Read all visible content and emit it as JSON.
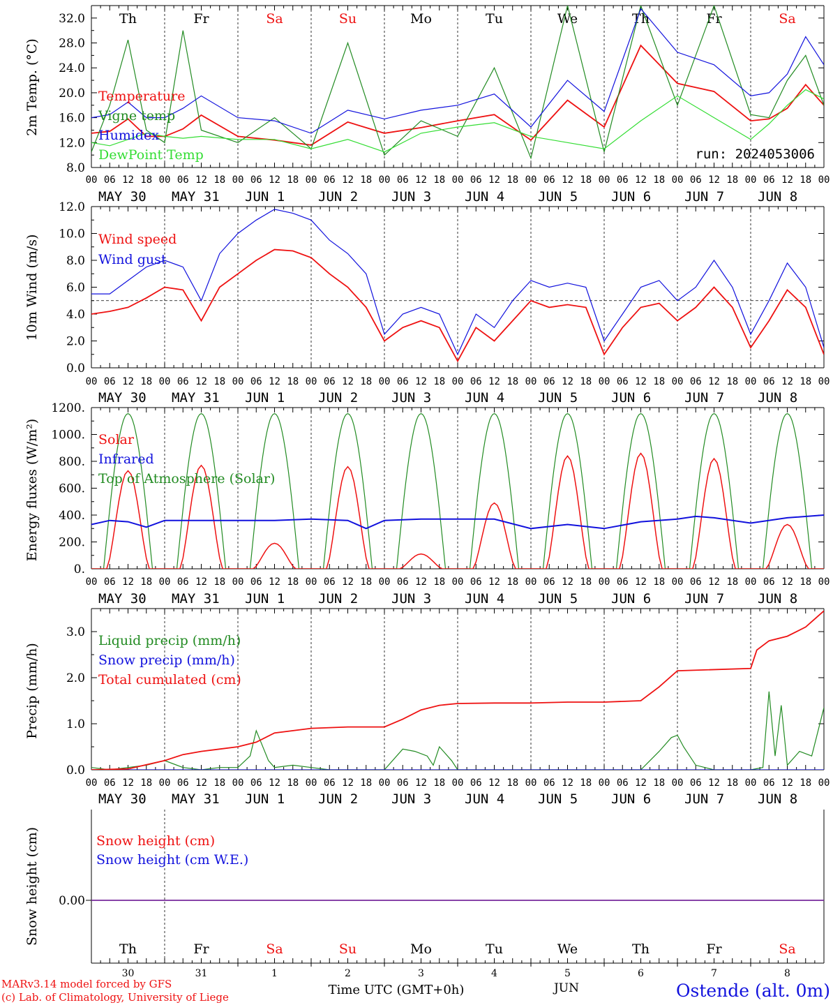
{
  "footer": {
    "model": "MARv3.14 model forced by GFS",
    "lab": "(c) Lab. of Climatology, University of Liege",
    "xlabel": "Time UTC (GMT+0h)",
    "month": "JUN",
    "station": "Ostende (alt. 0m)"
  },
  "colors": {
    "red": "#ee1111",
    "green": "#228b22",
    "blue": "#1111dd",
    "lightgreen": "#33dd33",
    "purple": "#7a2ea0",
    "black": "#000000"
  },
  "days": {
    "weekday": [
      "Th",
      "Fr",
      "Sa",
      "Su",
      "Mo",
      "Tu",
      "We",
      "Th",
      "Fr",
      "Sa"
    ],
    "weekend": [
      false,
      false,
      true,
      true,
      false,
      false,
      false,
      false,
      false,
      true
    ],
    "date_labels": [
      "MAY 30",
      "MAY 31",
      "JUN  1",
      "JUN  2",
      "JUN  3",
      "JUN  4",
      "JUN  5",
      "JUN  6",
      "JUN  7",
      "JUN  8"
    ],
    "day_numbers": [
      "30",
      "31",
      "1",
      "2",
      "3",
      "4",
      "5",
      "6",
      "7",
      "8"
    ],
    "hour_ticks": [
      "00",
      "06",
      "12",
      "18"
    ],
    "final_hour": "00"
  },
  "chart_data": [
    {
      "type": "line",
      "ylabel": "2m Temp. (°C)",
      "ylim": [
        8,
        34
      ],
      "yticks": [
        "8.0",
        "12.0",
        "16.0",
        "20.0",
        "24.0",
        "28.0",
        "32.0"
      ],
      "annotation": "run: 2024053006",
      "x_unit": "hours since May 30 00 UTC",
      "series": [
        {
          "name": "Temperature",
          "color": "red",
          "x": [
            0,
            6,
            12,
            18,
            24,
            30,
            36,
            48,
            60,
            72,
            84,
            96,
            108,
            120,
            132,
            144,
            156,
            168,
            180,
            192,
            204,
            216,
            222,
            228,
            234,
            240
          ],
          "y": [
            13.5,
            13.8,
            15.8,
            13.0,
            13.0,
            14.2,
            16.4,
            13.0,
            12.4,
            11.6,
            15.3,
            13.5,
            14.4,
            15.5,
            16.5,
            12.4,
            18.8,
            14.5,
            27.6,
            21.5,
            20.2,
            15.5,
            15.8,
            17.5,
            21.3,
            18.0
          ]
        },
        {
          "name": "Vigne temp",
          "color": "green",
          "x": [
            0,
            6,
            12,
            18,
            24,
            30,
            36,
            48,
            60,
            72,
            84,
            96,
            108,
            120,
            132,
            144,
            156,
            168,
            180,
            192,
            204,
            216,
            222,
            228,
            234,
            240
          ],
          "y": [
            10.5,
            18.0,
            28.5,
            14.0,
            12.0,
            30.0,
            14.0,
            12.0,
            16.0,
            11.0,
            28.0,
            10.0,
            15.5,
            13.0,
            24.0,
            9.5,
            34.0,
            10.5,
            34.0,
            18.0,
            34.0,
            16.5,
            16.0,
            22.0,
            26.0,
            18.0
          ]
        },
        {
          "name": "Humidex",
          "color": "blue",
          "x": [
            0,
            6,
            12,
            18,
            24,
            30,
            36,
            48,
            60,
            72,
            84,
            96,
            108,
            120,
            132,
            144,
            156,
            168,
            180,
            192,
            204,
            216,
            222,
            228,
            234,
            240
          ],
          "y": [
            16.0,
            16.5,
            18.5,
            16.0,
            16.0,
            17.5,
            19.5,
            16.0,
            15.5,
            13.5,
            17.2,
            15.8,
            17.2,
            18.0,
            19.8,
            14.5,
            22.0,
            17.0,
            33.5,
            26.5,
            24.5,
            19.5,
            20.0,
            23.0,
            29.0,
            24.5
          ]
        },
        {
          "name": "DewPoint Temp",
          "color": "lightgreen",
          "x": [
            0,
            6,
            12,
            18,
            24,
            30,
            36,
            48,
            60,
            72,
            84,
            96,
            108,
            120,
            132,
            144,
            156,
            168,
            180,
            192,
            204,
            216,
            222,
            228,
            234,
            240
          ],
          "y": [
            12.0,
            11.5,
            12.5,
            13.5,
            13.0,
            12.7,
            13.0,
            12.5,
            12.5,
            11.0,
            12.5,
            10.5,
            13.5,
            14.5,
            15.2,
            13.0,
            12.0,
            11.0,
            15.5,
            19.5,
            16.0,
            12.5,
            15.0,
            18.0,
            20.5,
            19.0
          ]
        }
      ]
    },
    {
      "type": "line",
      "ylabel": "10m Wind (m/s)",
      "ylim": [
        0,
        12
      ],
      "yticks": [
        "0.0",
        "2.0",
        "4.0",
        "6.0",
        "8.0",
        "10.0",
        "12.0"
      ],
      "reference_line": 5,
      "x_unit": "hours since May 30 00 UTC",
      "series": [
        {
          "name": "Wind speed",
          "color": "red",
          "x": [
            0,
            6,
            12,
            18,
            24,
            30,
            36,
            42,
            48,
            54,
            60,
            66,
            72,
            78,
            84,
            90,
            96,
            102,
            108,
            114,
            120,
            126,
            132,
            138,
            144,
            150,
            156,
            162,
            168,
            174,
            180,
            186,
            192,
            198,
            204,
            210,
            216,
            222,
            228,
            234,
            240
          ],
          "y": [
            4.0,
            4.2,
            4.5,
            5.2,
            6.0,
            5.8,
            3.5,
            6.0,
            7.0,
            8.0,
            8.8,
            8.7,
            8.2,
            7.0,
            6.0,
            4.5,
            2.0,
            3.0,
            3.5,
            3.0,
            0.5,
            3.0,
            2.0,
            3.5,
            5.0,
            4.5,
            4.7,
            4.5,
            1.0,
            3.0,
            4.5,
            4.8,
            3.5,
            4.5,
            6.0,
            4.5,
            1.5,
            3.5,
            5.8,
            4.5,
            1.0
          ]
        },
        {
          "name": "Wind gust",
          "color": "blue",
          "x": [
            0,
            6,
            12,
            18,
            24,
            30,
            36,
            42,
            48,
            54,
            60,
            66,
            72,
            78,
            84,
            90,
            96,
            102,
            108,
            114,
            120,
            126,
            132,
            138,
            144,
            150,
            156,
            162,
            168,
            174,
            180,
            186,
            192,
            198,
            204,
            210,
            216,
            222,
            228,
            234,
            240
          ],
          "y": [
            5.5,
            5.5,
            6.5,
            7.5,
            8.0,
            7.5,
            5.0,
            8.5,
            10.0,
            11.0,
            11.8,
            11.5,
            11.0,
            9.5,
            8.5,
            7.0,
            2.5,
            4.0,
            4.5,
            4.0,
            1.0,
            4.0,
            3.0,
            5.0,
            6.5,
            6.0,
            6.3,
            6.0,
            2.0,
            4.0,
            6.0,
            6.5,
            5.0,
            6.0,
            8.0,
            6.0,
            2.5,
            5.0,
            7.8,
            6.0,
            1.5
          ]
        }
      ]
    },
    {
      "type": "line",
      "ylabel": "Energy fluxes (W/m²)",
      "ylim": [
        0,
        1200
      ],
      "yticks": [
        "0.",
        "200.",
        "400.",
        "600.",
        "800.",
        "1000.",
        "1200."
      ],
      "x_unit": "hours since May 30 00 UTC",
      "toa_daily_peak": 1155,
      "toa_day_span_hours": [
        4,
        20
      ],
      "series": [
        {
          "name": "Solar",
          "color": "red",
          "daily_peak": [
            730,
            770,
            190,
            760,
            110,
            490,
            840,
            860,
            820,
            330
          ]
        },
        {
          "name": "Infrared",
          "color": "blue",
          "x": [
            0,
            6,
            12,
            18,
            24,
            30,
            36,
            48,
            60,
            72,
            84,
            90,
            96,
            108,
            120,
            132,
            144,
            156,
            168,
            180,
            192,
            198,
            204,
            216,
            228,
            240
          ],
          "y": [
            330,
            360,
            350,
            310,
            360,
            360,
            360,
            360,
            360,
            370,
            360,
            300,
            360,
            370,
            370,
            370,
            300,
            330,
            300,
            350,
            370,
            390,
            380,
            340,
            380,
            400
          ]
        },
        {
          "name": "Top of Atmosphere (Solar)",
          "color": "green"
        }
      ]
    },
    {
      "type": "line",
      "ylabel": "Precip (mm/h)",
      "ylim": [
        0,
        3.5
      ],
      "yticks": [
        "0.0",
        "1.0",
        "2.0",
        "3.0"
      ],
      "x_unit": "hours since May 30 00 UTC",
      "series": [
        {
          "name": "Liquid precip (mm/h)",
          "color": "green",
          "x": [
            0,
            6,
            12,
            18,
            24,
            30,
            36,
            42,
            48,
            52,
            54,
            58,
            60,
            66,
            72,
            78,
            84,
            96,
            102,
            106,
            110,
            112,
            114,
            118,
            120,
            126,
            132,
            138,
            144,
            150,
            156,
            162,
            168,
            174,
            180,
            186,
            190,
            192,
            194,
            198,
            204,
            210,
            216,
            220,
            222,
            224,
            226,
            228,
            232,
            236,
            240
          ],
          "y": [
            0.05,
            0.0,
            0.05,
            0.1,
            0.2,
            0.05,
            0.0,
            0.05,
            0.05,
            0.3,
            0.85,
            0.2,
            0.05,
            0.1,
            0.05,
            0.0,
            0.0,
            0.0,
            0.45,
            0.4,
            0.3,
            0.1,
            0.5,
            0.2,
            0.0,
            0.0,
            0.0,
            0.0,
            0.0,
            0.0,
            0.0,
            0.0,
            0.0,
            0.0,
            0.0,
            0.4,
            0.7,
            0.75,
            0.5,
            0.1,
            0.0,
            0.0,
            0.0,
            0.05,
            1.7,
            0.3,
            1.4,
            0.1,
            0.4,
            0.3,
            1.35
          ]
        },
        {
          "name": "Snow precip (mm/h)",
          "color": "blue",
          "x": [
            0,
            240
          ],
          "y": [
            0,
            0
          ]
        },
        {
          "name": "Total cumulated (cm)",
          "color": "red",
          "x": [
            0,
            12,
            24,
            30,
            36,
            42,
            48,
            54,
            60,
            72,
            84,
            96,
            102,
            108,
            114,
            120,
            132,
            144,
            156,
            168,
            180,
            186,
            192,
            216,
            218,
            222,
            228,
            234,
            240
          ],
          "y": [
            0.0,
            0.02,
            0.2,
            0.33,
            0.4,
            0.45,
            0.5,
            0.6,
            0.8,
            0.9,
            0.93,
            0.93,
            1.1,
            1.3,
            1.4,
            1.44,
            1.45,
            1.45,
            1.47,
            1.47,
            1.5,
            1.8,
            2.15,
            2.2,
            2.6,
            2.8,
            2.9,
            3.1,
            3.45
          ]
        }
      ]
    },
    {
      "type": "line",
      "ylabel": "Snow height (cm)",
      "yticks": [
        "0.00"
      ],
      "x_unit": "hours since May 30 00 UTC",
      "series": [
        {
          "name": "Snow height (cm)",
          "color": "red",
          "x": [
            0,
            240
          ],
          "y": [
            0,
            0
          ]
        },
        {
          "name": "Snow height (cm W.E.)",
          "color": "blue",
          "x": [
            0,
            240
          ],
          "y": [
            0,
            0
          ]
        }
      ]
    }
  ]
}
